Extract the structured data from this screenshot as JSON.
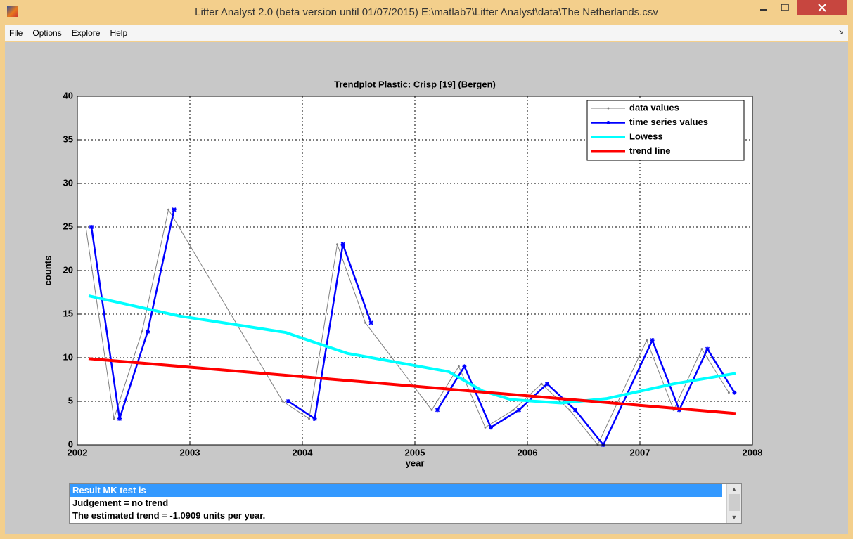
{
  "window": {
    "title": "Litter Analyst 2.0 (beta version until 01/07/2015) E:\\matlab7\\Litter Analyst\\data\\The Netherlands.csv"
  },
  "menu": [
    "File",
    "Options",
    "Explore",
    "Help"
  ],
  "chart_data": {
    "type": "line",
    "title": "Trendplot Plastic: Crisp [19] (Bergen)",
    "xlabel": "year",
    "ylabel": "counts",
    "xlim": [
      2002,
      2008
    ],
    "ylim": [
      0,
      40
    ],
    "xticks": [
      2002,
      2003,
      2004,
      2005,
      2006,
      2007,
      2008
    ],
    "yticks": [
      0,
      5,
      10,
      15,
      20,
      25,
      30,
      35,
      40
    ],
    "grid": true,
    "legend": "upper right",
    "series": [
      {
        "name": "data values",
        "color": "#808080",
        "marker": ".",
        "x": [
          2002.075,
          2002.325,
          2002.575,
          2002.81,
          2003.825,
          2004.06,
          2004.31,
          2004.56,
          2005.15,
          2005.39,
          2005.625,
          2005.875,
          2006.125,
          2006.375,
          2006.625,
          2007.06,
          2007.3,
          2007.55,
          2007.79
        ],
        "values": [
          25,
          3,
          13,
          27,
          5,
          3,
          23,
          14,
          4,
          9,
          2,
          4,
          7,
          4,
          0,
          12,
          4,
          11,
          6
        ]
      },
      {
        "name": "time series values",
        "color": "#0000ff",
        "marker": "*",
        "x": [
          2002.125,
          2002.375,
          2002.625,
          2002.86,
          2003.11,
          2003.875,
          2004.11,
          2004.36,
          2004.61,
          2004.86,
          2005.2,
          2005.44,
          2005.675,
          2005.925,
          2006.175,
          2006.425,
          2006.675,
          2007.11,
          2007.35,
          2007.6,
          2007.84
        ],
        "values": [
          25,
          3,
          13,
          27,
          null,
          5,
          3,
          23,
          14,
          null,
          4,
          9,
          2,
          4,
          7,
          4,
          0,
          12,
          4,
          11,
          6
        ]
      },
      {
        "name": "Lowess",
        "color": "#00ffff",
        "x": [
          2002.1,
          2002.9,
          2003.85,
          2004.1,
          2004.4,
          2005.3,
          2005.6,
          2005.85,
          2006.3,
          2006.7,
          2007.3,
          2007.85
        ],
        "values": [
          17.1,
          14.8,
          12.9,
          11.8,
          10.5,
          8.4,
          6.2,
          5.2,
          4.8,
          5.3,
          7.0,
          8.2
        ]
      },
      {
        "name": "trend line",
        "color": "#ff0000",
        "x": [
          2002.1,
          2007.85
        ],
        "values": [
          9.9,
          3.6
        ]
      }
    ]
  },
  "result_list": {
    "items": [
      "Result MK test is",
      "Judgement = no trend",
      "The estimated trend = -1.0909 units per year."
    ]
  }
}
